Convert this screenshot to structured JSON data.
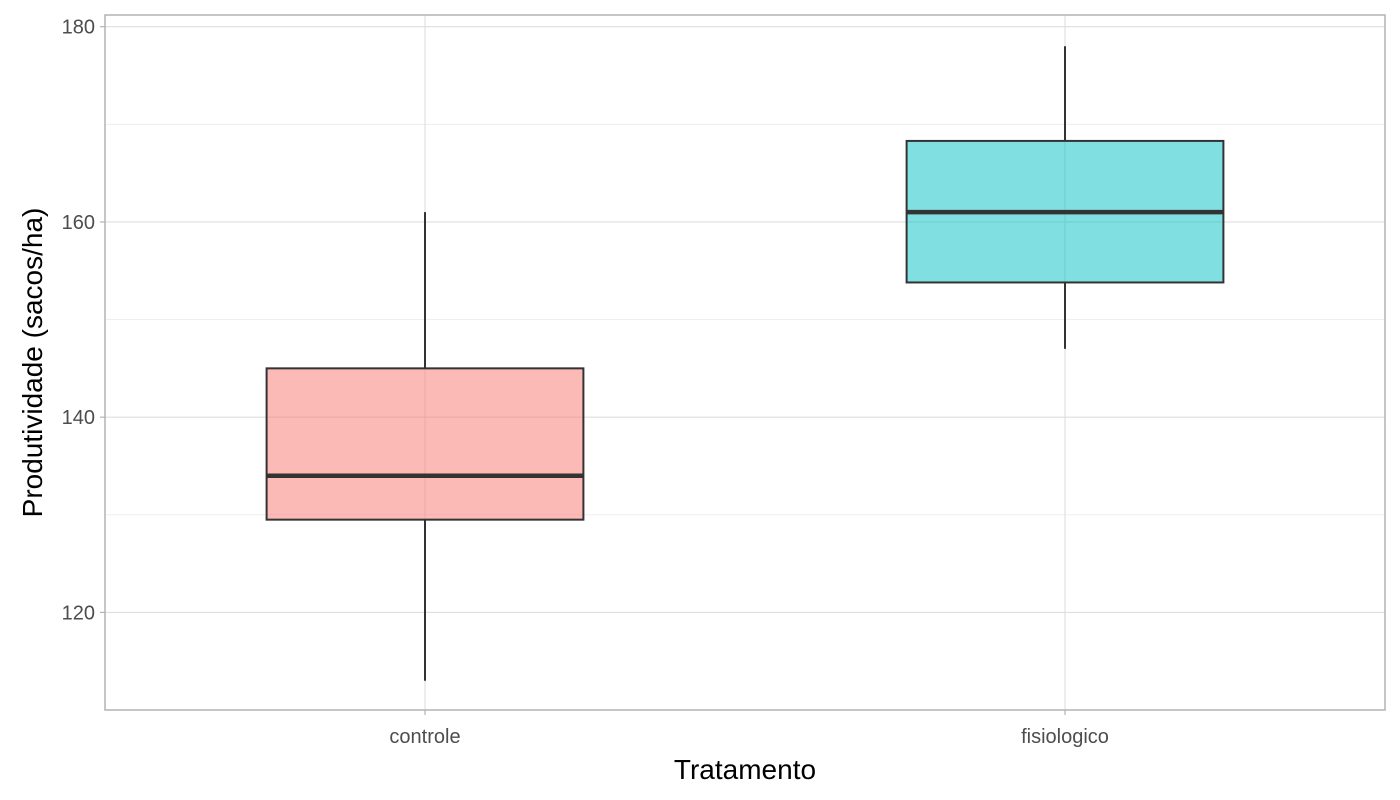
{
  "chart_data": {
    "type": "boxplot",
    "xlabel": "Tratamento",
    "ylabel": "Produtividade (sacos/ha)",
    "categories": [
      "controle",
      "fisiologico"
    ],
    "boxes": [
      {
        "category": "controle",
        "min": 113,
        "q1": 129.5,
        "median": 134,
        "q3": 145,
        "max": 161,
        "color": "#F8766D"
      },
      {
        "category": "fisiologico",
        "min": 147,
        "q1": 153.8,
        "median": 161,
        "q3": 168.3,
        "max": 178,
        "color": "#00BFC4"
      }
    ],
    "ylim": [
      110,
      181.2
    ],
    "y_ticks": [
      120,
      140,
      160,
      180
    ],
    "y_minor_ticks": [
      130,
      150,
      170
    ],
    "grid": true,
    "fill_alpha": 0.5
  }
}
